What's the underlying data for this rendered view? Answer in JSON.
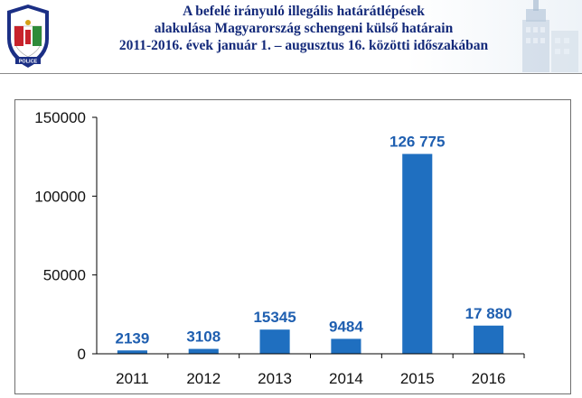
{
  "header": {
    "title_lines": [
      "A befelé irányuló illegális határátlépések",
      "alakulása  Magyarország schengeni külső határain",
      "2011-2016. évek január 1. – augusztus 16. közötti időszakában"
    ],
    "logo": {
      "icon": "police-badge-icon",
      "top_text": "RENDŐRSÉG",
      "bottom_text": "POLICE",
      "colors": {
        "shield_red": "#c8232b",
        "shield_white": "#ffffff",
        "shield_green": "#2e8b3a",
        "ring": "#1b2f85"
      }
    },
    "building_icon": "building-icon",
    "title_color": "#142a7a"
  },
  "chart_data": {
    "type": "bar",
    "categories": [
      "2011",
      "2012",
      "2013",
      "2014",
      "2015",
      "2016"
    ],
    "values": [
      2139,
      3108,
      15345,
      9484,
      126775,
      17880
    ],
    "data_labels": [
      "2139",
      "3108",
      "15345",
      "9484",
      "126 775",
      "17 880"
    ],
    "y_ticks": [
      0,
      50000,
      100000,
      150000
    ],
    "y_tick_labels": [
      "0",
      "50000",
      "100000",
      "150000"
    ],
    "ylim": [
      0,
      150000
    ],
    "title": "",
    "xlabel": "",
    "ylabel": "",
    "grid": false,
    "legend": "none",
    "colors": {
      "bar": "#1f6fc0",
      "data_label": "#1f5fb0",
      "axis": "#000000"
    }
  }
}
